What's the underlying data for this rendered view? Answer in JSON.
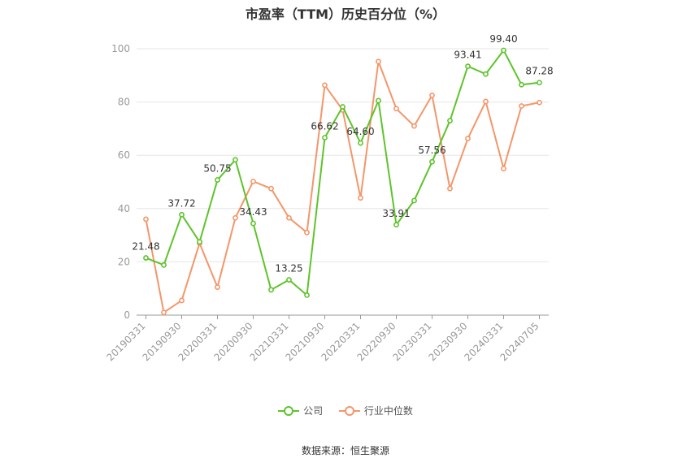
{
  "chart_data": {
    "type": "line",
    "title": "市盈率（TTM）历史百分位（%）",
    "xlabel": "",
    "ylabel": "",
    "ylim": [
      0,
      100
    ],
    "yticks": [
      0,
      20,
      40,
      60,
      80,
      100
    ],
    "grid": true,
    "legend_position": "bottom",
    "x": [
      "20190331",
      "20190630",
      "20190930",
      "20191231",
      "20200331",
      "20200630",
      "20200930",
      "20201231",
      "20210331",
      "20210630",
      "20210930",
      "20211231",
      "20220331",
      "20220630",
      "20220930",
      "20221231",
      "20230331",
      "20230630",
      "20230930",
      "20231231",
      "20240331",
      "20240630",
      "20240705"
    ],
    "x_tick_labels": [
      "20190331",
      "20190930",
      "20200331",
      "20200930",
      "20210331",
      "20210930",
      "20220331",
      "20220930",
      "20230331",
      "20230930",
      "20240331",
      "20240705"
    ],
    "series": [
      {
        "name": "公司",
        "color": "#5ec42b",
        "values": [
          21.48,
          18.8,
          37.72,
          27.5,
          50.75,
          58.3,
          34.43,
          9.5,
          13.25,
          7.5,
          66.62,
          78.2,
          64.6,
          80.5,
          33.91,
          43.0,
          57.56,
          73.0,
          93.41,
          90.5,
          99.4,
          86.5,
          87.28
        ],
        "labels": [
          "21.48",
          null,
          "37.72",
          null,
          "50.75",
          null,
          "34.43",
          null,
          "13.25",
          null,
          "66.62",
          null,
          "64.60",
          null,
          "33.91",
          null,
          "57.56",
          null,
          "93.41",
          null,
          "99.40",
          null,
          "87.28"
        ]
      },
      {
        "name": "行业中位数",
        "color": "#f4966a",
        "values": [
          36.0,
          1.0,
          5.5,
          27.0,
          10.5,
          36.5,
          50.2,
          47.5,
          36.5,
          31.0,
          86.3,
          77.0,
          44.0,
          95.2,
          77.5,
          71.0,
          82.5,
          47.5,
          66.3,
          80.2,
          55.0,
          78.5,
          79.8
        ]
      }
    ]
  },
  "source_text": "数据来源：恒生聚源"
}
